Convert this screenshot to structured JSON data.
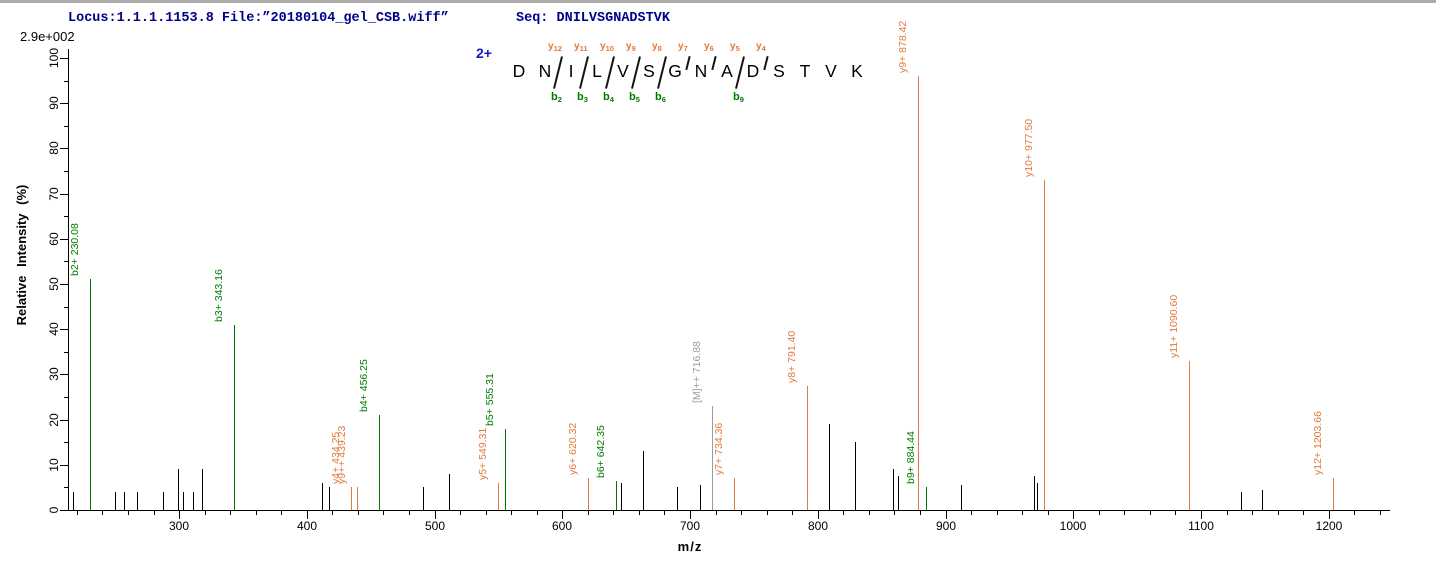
{
  "header": {
    "locus_file": "Locus:1.1.1.1153.8 File:”20180104_gel_CSB.wiff”",
    "seq": "Seq: DNILVSGNADSTVK"
  },
  "colors": {
    "b_ion": "#007b00",
    "y_ion": "#e07b3c",
    "precursor": "#9c9c9c",
    "unassigned_peak": "#000000",
    "header_text": "#00008b",
    "charge_label": "#1616c8",
    "axis": "#000000"
  },
  "sequence_map": {
    "charge": "2+",
    "residues": [
      "D",
      "N",
      "I",
      "L",
      "V",
      "S",
      "G",
      "N",
      "A",
      "D",
      "S",
      "T",
      "V",
      "K"
    ],
    "cleavages": [
      {
        "after": 2,
        "y": "y12",
        "b": "b2"
      },
      {
        "after": 3,
        "y": "y11",
        "b": "b3"
      },
      {
        "after": 4,
        "y": "y10",
        "b": "b4"
      },
      {
        "after": 5,
        "y": "y9",
        "b": "b5"
      },
      {
        "after": 6,
        "y": "y8",
        "b": "b6"
      },
      {
        "after": 7,
        "y": "y7",
        "b": null
      },
      {
        "after": 8,
        "y": "y6",
        "b": null
      },
      {
        "after": 9,
        "y": "y5",
        "b": "b9"
      },
      {
        "after": 10,
        "y": "y4",
        "b": null
      }
    ]
  },
  "chart_data": {
    "type": "bar",
    "subtype": "ms2-peptide-fragmentation-spectrum",
    "title": "Locus:1.1.1.1153.8 File:”20180104_gel_CSB.wiff” Seq: DNILVSGNADSTVK",
    "xlabel": "m/z",
    "ylabel": "Relative Intensity (%)",
    "intensity_scale": "2.9e+002",
    "xlim": [
      213,
      1248
    ],
    "ylim": [
      0,
      100
    ],
    "x_ticks": {
      "major_start": 300,
      "major_step": 100,
      "major_end": 1200,
      "minor_start": 220,
      "minor_step": 20,
      "minor_end": 1240
    },
    "y_ticks": {
      "major_step": 10,
      "minor_step": 5
    },
    "grid": false,
    "peaks": [
      {
        "mz": 217,
        "intensity_pct": 4,
        "ion": "unassigned",
        "label": null
      },
      {
        "mz": 230.08,
        "intensity_pct": 51,
        "ion": "b",
        "label": "b2+ 230.08"
      },
      {
        "mz": 250,
        "intensity_pct": 4,
        "ion": "unassigned",
        "label": null
      },
      {
        "mz": 257,
        "intensity_pct": 4,
        "ion": "unassigned",
        "label": null
      },
      {
        "mz": 267,
        "intensity_pct": 4,
        "ion": "unassigned",
        "label": null
      },
      {
        "mz": 287,
        "intensity_pct": 4,
        "ion": "unassigned",
        "label": null
      },
      {
        "mz": 299,
        "intensity_pct": 9,
        "ion": "unassigned",
        "label": null
      },
      {
        "mz": 303,
        "intensity_pct": 4,
        "ion": "unassigned",
        "label": null
      },
      {
        "mz": 311,
        "intensity_pct": 4,
        "ion": "unassigned",
        "label": null
      },
      {
        "mz": 318,
        "intensity_pct": 9,
        "ion": "unassigned",
        "label": null
      },
      {
        "mz": 343.16,
        "intensity_pct": 41,
        "ion": "b",
        "label": "b3+ 343.16"
      },
      {
        "mz": 412,
        "intensity_pct": 6,
        "ion": "unassigned",
        "label": null
      },
      {
        "mz": 417,
        "intensity_pct": 5,
        "ion": "unassigned",
        "label": null
      },
      {
        "mz": 434.25,
        "intensity_pct": 5,
        "ion": "y",
        "label": "y4+ 434.25"
      },
      {
        "mz": 439.23,
        "intensity_pct": 5,
        "ion": "y",
        "label": "y9++ 439.23"
      },
      {
        "mz": 456.25,
        "intensity_pct": 21,
        "ion": "b",
        "label": "b4+ 456.25"
      },
      {
        "mz": 491,
        "intensity_pct": 5,
        "ion": "unassigned",
        "label": null
      },
      {
        "mz": 511,
        "intensity_pct": 8,
        "ion": "unassigned",
        "label": null
      },
      {
        "mz": 549.31,
        "intensity_pct": 6,
        "ion": "y",
        "label": "y5+ 549.31"
      },
      {
        "mz": 555.31,
        "intensity_pct": 18,
        "ion": "b",
        "label": "b5+ 555.31"
      },
      {
        "mz": 620.32,
        "intensity_pct": 7,
        "ion": "y",
        "label": "y6+ 620.32"
      },
      {
        "mz": 642.35,
        "intensity_pct": 6.5,
        "ion": "b",
        "label": "b6+ 642.35"
      },
      {
        "mz": 646,
        "intensity_pct": 6,
        "ion": "unassigned",
        "label": null
      },
      {
        "mz": 663,
        "intensity_pct": 13,
        "ion": "unassigned",
        "label": null
      },
      {
        "mz": 690,
        "intensity_pct": 5,
        "ion": "unassigned",
        "label": null
      },
      {
        "mz": 708,
        "intensity_pct": 5.5,
        "ion": "unassigned",
        "label": null
      },
      {
        "mz": 716.88,
        "intensity_pct": 23,
        "ion": "precursor",
        "label": "[M]++ 716.88"
      },
      {
        "mz": 734.36,
        "intensity_pct": 7,
        "ion": "y",
        "label": "y7+ 734.36"
      },
      {
        "mz": 791.4,
        "intensity_pct": 27.5,
        "ion": "y",
        "label": "y8+ 791.40"
      },
      {
        "mz": 809,
        "intensity_pct": 19,
        "ion": "unassigned",
        "label": null
      },
      {
        "mz": 829,
        "intensity_pct": 15,
        "ion": "unassigned",
        "label": null
      },
      {
        "mz": 859,
        "intensity_pct": 9,
        "ion": "unassigned",
        "label": null
      },
      {
        "mz": 863,
        "intensity_pct": 7.5,
        "ion": "unassigned",
        "label": null
      },
      {
        "mz": 878.42,
        "intensity_pct": 96,
        "ion": "y",
        "label": "y9+ 878.42"
      },
      {
        "mz": 884.44,
        "intensity_pct": 5,
        "ion": "b",
        "label": "b9+ 884.44"
      },
      {
        "mz": 912,
        "intensity_pct": 5.5,
        "ion": "unassigned",
        "label": null
      },
      {
        "mz": 969,
        "intensity_pct": 7.5,
        "ion": "unassigned",
        "label": null
      },
      {
        "mz": 972,
        "intensity_pct": 6,
        "ion": "unassigned",
        "label": null
      },
      {
        "mz": 977.5,
        "intensity_pct": 73,
        "ion": "y",
        "label": "y10+ 977.50"
      },
      {
        "mz": 1090.6,
        "intensity_pct": 33,
        "ion": "y",
        "label": "y11+ 1090.60"
      },
      {
        "mz": 1131,
        "intensity_pct": 4,
        "ion": "unassigned",
        "label": null
      },
      {
        "mz": 1148,
        "intensity_pct": 4.5,
        "ion": "unassigned",
        "label": null
      },
      {
        "mz": 1203.66,
        "intensity_pct": 7,
        "ion": "y",
        "label": "y12+ 1203.66"
      }
    ]
  }
}
